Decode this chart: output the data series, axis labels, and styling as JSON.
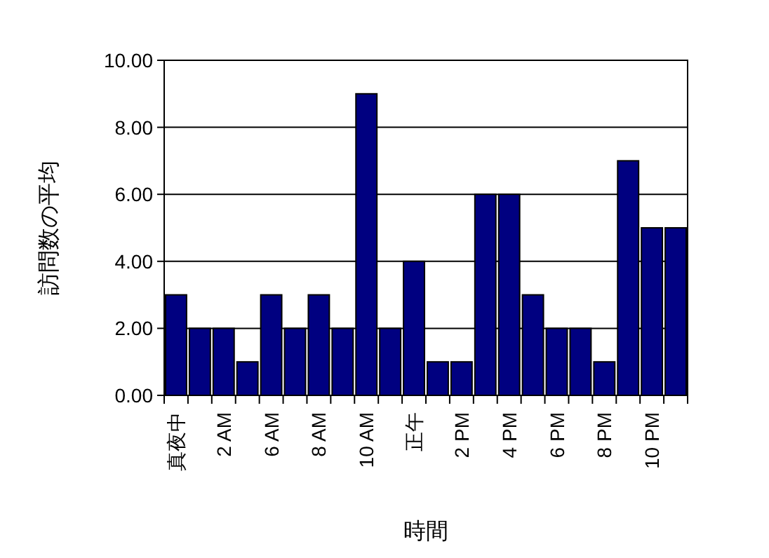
{
  "chart_data": {
    "type": "bar",
    "xlabel": "時間",
    "ylabel": "訪問数の平均",
    "categories": [
      "真夜中",
      null,
      "2 AM",
      null,
      "6 AM",
      null,
      "8 AM",
      null,
      "10 AM",
      null,
      "正午",
      null,
      "2 PM",
      null,
      "4 PM",
      null,
      "6 PM",
      null,
      "8 PM",
      null,
      "10 PM",
      null
    ],
    "values": [
      3,
      2,
      2,
      1,
      3,
      2,
      3,
      2,
      9,
      2,
      4,
      1,
      1,
      6,
      6,
      3,
      2,
      2,
      1,
      7,
      5,
      5
    ],
    "color": "#000080",
    "ylim": [
      0,
      10
    ],
    "yticks": [
      {
        "value": 0,
        "label": "0.00"
      },
      {
        "value": 2,
        "label": "2.00"
      },
      {
        "value": 4,
        "label": "4.00"
      },
      {
        "value": 6,
        "label": "6.00"
      },
      {
        "value": 8,
        "label": "8.00"
      },
      {
        "value": 10,
        "label": "10.00"
      }
    ],
    "grid": "y"
  }
}
